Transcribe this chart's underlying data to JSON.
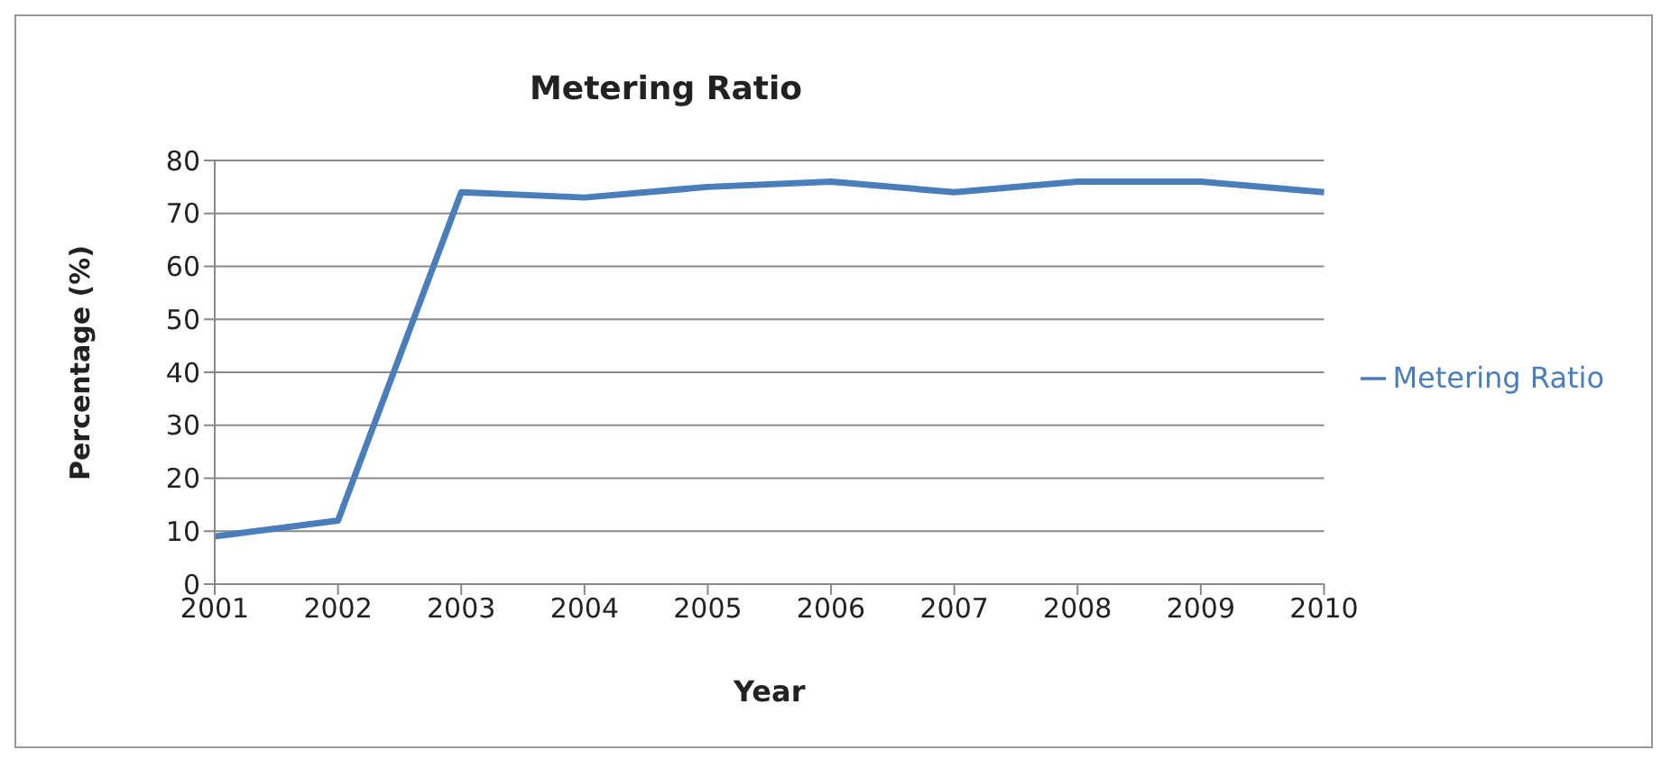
{
  "chart_data": {
    "type": "line",
    "title": "Metering Ratio",
    "xlabel": "Year",
    "ylabel": "Percentage (%)",
    "categories": [
      "2001",
      "2002",
      "2003",
      "2004",
      "2005",
      "2006",
      "2007",
      "2008",
      "2009",
      "2010"
    ],
    "series": [
      {
        "name": "Metering Ratio",
        "color": "#4a7ebb",
        "values": [
          9,
          12,
          74,
          73,
          75,
          76,
          74,
          76,
          76,
          74
        ]
      }
    ],
    "ylim": [
      0,
      80
    ],
    "yticks": [
      0,
      10,
      20,
      30,
      40,
      50,
      60,
      70,
      80
    ],
    "grid": "y",
    "legend": "right",
    "marker": "none",
    "line_style": "solid"
  }
}
